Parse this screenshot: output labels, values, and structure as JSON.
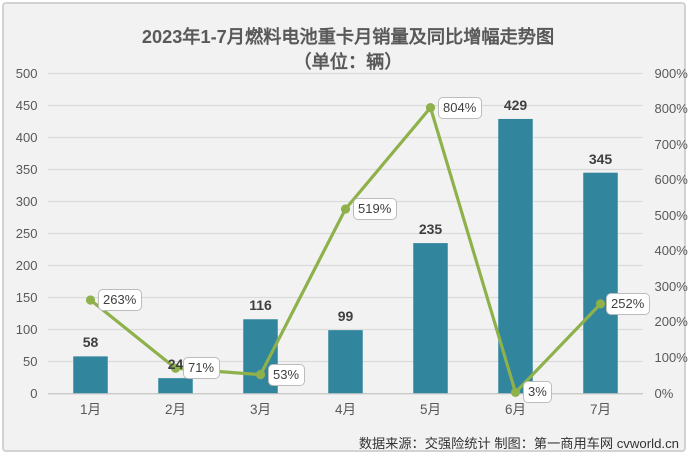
{
  "title": {
    "line1": "2023年1-7月燃料电池重卡月销量及同比增幅走势图",
    "line2": "（单位：辆）"
  },
  "chart_data": {
    "type": "bar+line",
    "categories": [
      "1月",
      "2月",
      "3月",
      "4月",
      "5月",
      "6月",
      "7月"
    ],
    "series": [
      {
        "name": "月销量",
        "type": "bar",
        "axis": "left",
        "values": [
          58,
          24,
          116,
          99,
          235,
          429,
          345
        ],
        "labels": [
          "58",
          "24",
          "116",
          "99",
          "235",
          "429",
          "345"
        ],
        "color": "#31859C"
      },
      {
        "name": "同比增幅",
        "type": "line",
        "axis": "right",
        "values": [
          263,
          71,
          53,
          519,
          804,
          3,
          252
        ],
        "labels": [
          "263%",
          "71%",
          "53%",
          "519%",
          "804%",
          "3%",
          "252%"
        ],
        "color": "#8FB14C"
      }
    ],
    "left_axis": {
      "min": 0,
      "max": 500,
      "step": 50,
      "ticks": [
        "0",
        "50",
        "100",
        "150",
        "200",
        "250",
        "300",
        "350",
        "400",
        "450",
        "500"
      ]
    },
    "right_axis": {
      "min": 0,
      "max": 900,
      "step": 100,
      "ticks": [
        "0%",
        "100%",
        "200%",
        "300%",
        "400%",
        "500%",
        "600%",
        "700%",
        "800%",
        "900%"
      ]
    },
    "grid": true,
    "legend": "none"
  },
  "footer": {
    "text": "数据来源：交强险统计 制图：第一商用车网 cvworld.cn"
  },
  "colors": {
    "canvas": "#FFFFFF",
    "chart_background": "#F2F2F2",
    "chart_border": "#D2D2D2",
    "bar": "#31859C",
    "line": "#8FB14C",
    "gridline": "#DBDBDB",
    "axis_line": "#C9C9C9",
    "title_text": "#595959",
    "tick_text": "#595959",
    "data_label_text": "#3F3F3F",
    "footer_text": "#333333"
  }
}
